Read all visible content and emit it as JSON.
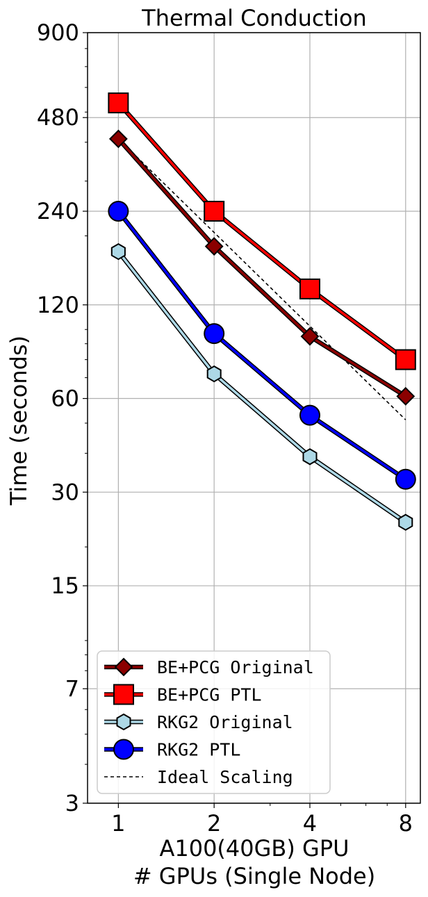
{
  "chart_data": {
    "type": "line",
    "title": "Thermal Conduction",
    "xlabel_line1": "A100(40GB) GPU",
    "xlabel_line2": "# GPUs (Single Node)",
    "ylabel": "Time (seconds)",
    "x": [
      1,
      2,
      4,
      8
    ],
    "x_scale": "log2",
    "y_scale": "log",
    "xlim": [
      0.8,
      8.9
    ],
    "ylim": [
      3,
      900
    ],
    "y_ticks": [
      3,
      7,
      15,
      30,
      60,
      120,
      240,
      480,
      900
    ],
    "y_tick_labels": [
      "3",
      "7",
      "15",
      "30",
      "60",
      "120",
      "240",
      "480",
      "900"
    ],
    "x_tick_labels": [
      "1",
      "2",
      "4",
      "8"
    ],
    "grid": true,
    "legend_position": "lower-left",
    "series": [
      {
        "name": "BE+PCG Original",
        "values": [
          410,
          185,
          95,
          61
        ],
        "color": "#8b0000",
        "marker": "diamond"
      },
      {
        "name": "BE+PCG PTL",
        "values": [
          535,
          240,
          135,
          80
        ],
        "color": "#ff0000",
        "marker": "square"
      },
      {
        "name": "RKG2 Original",
        "values": [
          178,
          72,
          39,
          24
        ],
        "color": "#add8e6",
        "marker": "hexagon"
      },
      {
        "name": "RKG2 PTL",
        "values": [
          240,
          97,
          53,
          33
        ],
        "color": "#0000ff",
        "marker": "circle"
      },
      {
        "name": "Ideal Scaling",
        "values": [
          410,
          205,
          102.5,
          51.25
        ],
        "color": "#000000",
        "marker": "none",
        "dashed": true
      }
    ]
  }
}
